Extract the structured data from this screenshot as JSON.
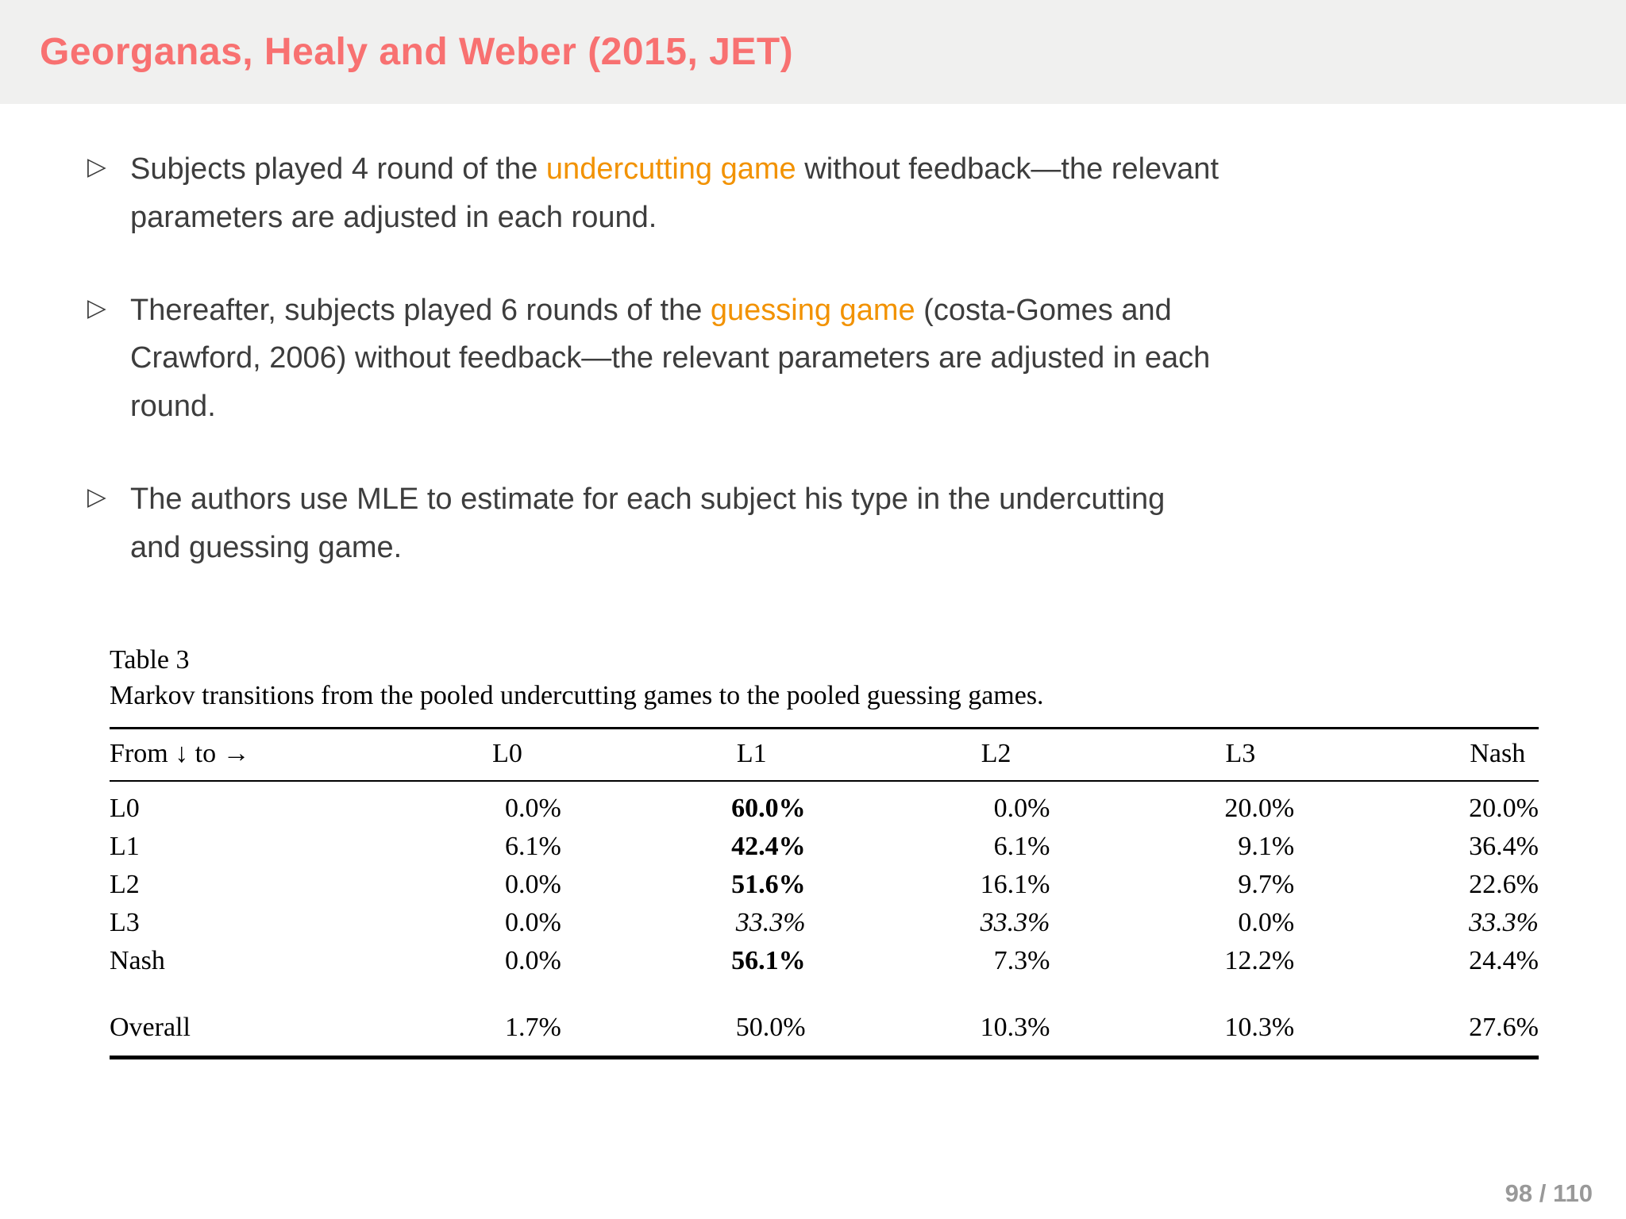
{
  "header": {
    "title": "Georganas, Healy and Weber (2015, JET)"
  },
  "bullets": [
    {
      "marker": "▷",
      "segments": [
        {
          "text": "Subjects played 4 round of the ",
          "style": "normal"
        },
        {
          "text": "undercutting game",
          "style": "highlight"
        },
        {
          "text": " without feedback—the relevant parameters are adjusted in each round.",
          "style": "normal"
        }
      ]
    },
    {
      "marker": "▷",
      "segments": [
        {
          "text": "Thereafter, subjects played 6 rounds of the ",
          "style": "normal"
        },
        {
          "text": "guessing game",
          "style": "highlight"
        },
        {
          "text": " (costa-Gomes and Crawford, 2006) without feedback—the relevant parameters are adjusted in each round.",
          "style": "normal"
        }
      ]
    },
    {
      "marker": "▷",
      "segments": [
        {
          "text": "The authors use MLE to estimate for each subject his type in the undercutting and guessing game.",
          "style": "normal"
        }
      ]
    }
  ],
  "table": {
    "label": "Table 3",
    "caption": "Markov transitions from the pooled undercutting games to the pooled guessing games.",
    "columns": [
      "From ↓ to →",
      "L0",
      "L1",
      "L2",
      "L3",
      "Nash"
    ],
    "rows": [
      {
        "label": "L0",
        "values": [
          "0.0%",
          "60.0%",
          "0.0%",
          "20.0%",
          "20.0%"
        ],
        "styles": [
          "normal",
          "bold",
          "normal",
          "normal",
          "normal"
        ]
      },
      {
        "label": "L1",
        "values": [
          "6.1%",
          "42.4%",
          "6.1%",
          "9.1%",
          "36.4%"
        ],
        "styles": [
          "normal",
          "bold",
          "normal",
          "normal",
          "normal"
        ]
      },
      {
        "label": "L2",
        "values": [
          "0.0%",
          "51.6%",
          "16.1%",
          "9.7%",
          "22.6%"
        ],
        "styles": [
          "normal",
          "bold",
          "normal",
          "normal",
          "normal"
        ]
      },
      {
        "label": "L3",
        "values": [
          "0.0%",
          "33.3%",
          "33.3%",
          "0.0%",
          "33.3%"
        ],
        "styles": [
          "normal",
          "italic",
          "italic",
          "normal",
          "italic"
        ]
      },
      {
        "label": "Nash",
        "values": [
          "0.0%",
          "56.1%",
          "7.3%",
          "12.2%",
          "24.4%"
        ],
        "styles": [
          "normal",
          "bold",
          "normal",
          "normal",
          "normal"
        ]
      }
    ],
    "summary_row": {
      "label": "Overall",
      "values": [
        "1.7%",
        "50.0%",
        "10.3%",
        "10.3%",
        "27.6%"
      ],
      "styles": [
        "normal",
        "normal",
        "normal",
        "normal",
        "normal"
      ]
    }
  },
  "footer": {
    "page_indicator": "98 / 110"
  },
  "colors": {
    "title_accent": "#f87171",
    "highlight_orange": "#f29200",
    "body_text": "#3d3d3d",
    "header_background": "#f0f0ef",
    "page_number_gray": "#999999"
  }
}
